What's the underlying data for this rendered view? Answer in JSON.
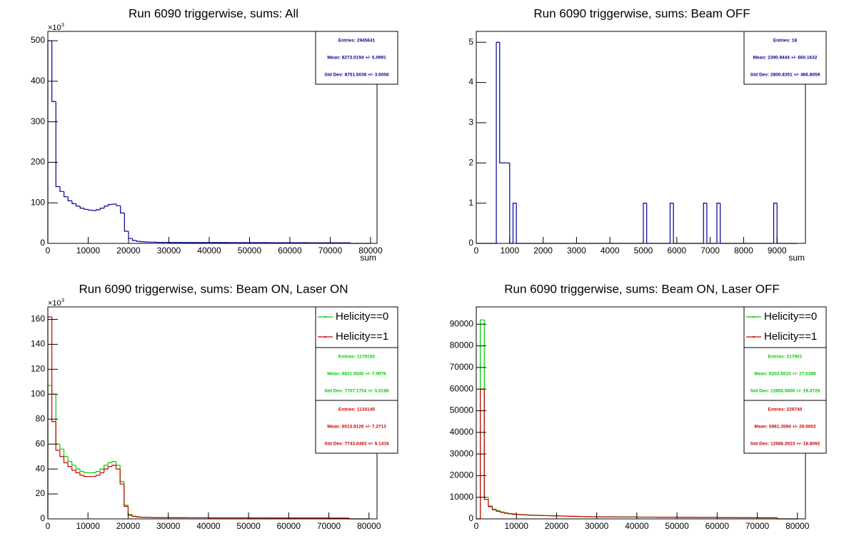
{
  "chart_data": [
    {
      "type": "histogram",
      "title": "Run 6090 triggerwise, sums: All",
      "xlabel": "sum",
      "y_multiplier": "×10",
      "y_multiplier_power": "3",
      "bins": [
        0,
        1000,
        2000,
        3000,
        4000,
        5000,
        6000,
        7000,
        8000,
        9000,
        10000,
        11000,
        12000,
        13000,
        14000,
        15000,
        16000,
        17000,
        18000,
        19000,
        20000,
        21000,
        22000,
        23000,
        24000,
        25000,
        26000,
        27000,
        28000,
        29000,
        30000,
        35000,
        40000,
        45000,
        50000,
        55000,
        60000,
        65000,
        70000,
        75000,
        80000
      ],
      "values": [
        500,
        350,
        140,
        128,
        115,
        105,
        98,
        92,
        87,
        84,
        82,
        81,
        83,
        87,
        92,
        96,
        97,
        93,
        75,
        30,
        12,
        7,
        5,
        4,
        3.5,
        3,
        3,
        2.5,
        2.5,
        2.5,
        2.2,
        2,
        2,
        1.8,
        1.7,
        1.6,
        1.5,
        1.4,
        1.3,
        0
      ],
      "color": "#000099",
      "stats": [
        "Entries: 2945641",
        "Mean: 8273.0194 +/- 5.0991",
        "Std Dev: 8751.5036 +/- 3.6056"
      ],
      "xlim": [
        0,
        81600
      ],
      "xticks": [
        0,
        10000,
        20000,
        30000,
        40000,
        50000,
        60000,
        70000,
        80000
      ],
      "ylim": [
        0,
        523
      ],
      "yticks": [
        0,
        100,
        200,
        300,
        400,
        500
      ]
    },
    {
      "type": "histogram",
      "title": "Run 6090 triggerwise, sums: Beam OFF",
      "xlabel": "sum",
      "bins": [
        0,
        600,
        700,
        800,
        900,
        1000,
        1100,
        1200,
        5000,
        5100,
        5800,
        5900,
        6800,
        6900,
        7200,
        7300,
        8900,
        9000,
        9600
      ],
      "values": [
        0,
        5,
        2,
        2,
        2,
        0,
        1,
        0,
        1,
        0,
        1,
        0,
        1,
        0,
        1,
        0,
        1,
        0
      ],
      "color": "#000099",
      "stats": [
        "Entries: 18",
        "Mean: 2390.9444 +/- 660.1632",
        "Std Dev: 2800.8351 +/- 466.8059"
      ],
      "xlim": [
        0,
        9850
      ],
      "xticks": [
        0,
        1000,
        2000,
        3000,
        4000,
        5000,
        6000,
        7000,
        8000,
        9000
      ],
      "ylim": [
        0,
        5.27
      ],
      "yticks": [
        0,
        1,
        2,
        3,
        4,
        5
      ]
    },
    {
      "type": "histogram",
      "title": "Run 6090 triggerwise, sums: Beam ON, Laser ON",
      "y_multiplier": "×10",
      "y_multiplier_power": "3",
      "bins": [
        0,
        1000,
        2000,
        3000,
        4000,
        5000,
        6000,
        7000,
        8000,
        9000,
        10000,
        11000,
        12000,
        13000,
        14000,
        15000,
        16000,
        17000,
        18000,
        19000,
        20000,
        21000,
        22000,
        23000,
        24000,
        25000,
        26000,
        27000,
        28000,
        29000,
        30000,
        35000,
        40000,
        45000,
        50000,
        55000,
        60000,
        65000,
        70000,
        75000,
        80000
      ],
      "series": [
        {
          "name": "Helicity==0",
          "color": "#00cc00",
          "stats": [
            "Entries: 1179150",
            "Mean: 6831.5540 +/- 7.0976",
            "Std Dev: 7707.1754 +/- 5.0188"
          ],
          "values": [
            107,
            100,
            60,
            56,
            50,
            46,
            43,
            40,
            38,
            37,
            37,
            37,
            38,
            40,
            43,
            45,
            46,
            43,
            30,
            11,
            3.5,
            2.2,
            1.7,
            1.4,
            1.3,
            1.2,
            1.1,
            1.1,
            1,
            1,
            1,
            0.9,
            0.9,
            0.9,
            0.8,
            0.8,
            0.7,
            0.7,
            0.7,
            0
          ]
        },
        {
          "name": "Helicity==1",
          "color": "#cc0000",
          "stats": [
            "Entries: 1134145",
            "Mean: 6513.8126 +/- 7.2713",
            "Std Dev: 7743.6483 +/- 5.1416"
          ],
          "values": [
            162,
            78,
            55,
            50,
            45,
            42,
            39,
            37,
            35,
            34,
            34,
            34,
            35,
            37,
            40,
            42,
            43,
            40,
            28,
            10,
            3,
            2,
            1.5,
            1.3,
            1.2,
            1.1,
            1,
            1,
            1,
            1,
            0.9,
            0.9,
            0.8,
            0.8,
            0.8,
            0.7,
            0.7,
            0.7,
            0.6,
            0
          ]
        }
      ],
      "xlim": [
        0,
        82000
      ],
      "xticks": [
        0,
        10000,
        20000,
        30000,
        40000,
        50000,
        60000,
        70000,
        80000
      ],
      "ylim": [
        0,
        170
      ],
      "yticks": [
        0,
        20,
        40,
        60,
        80,
        100,
        120,
        140,
        160
      ]
    },
    {
      "type": "histogram",
      "title": "Run 6090 triggerwise, sums: Beam ON, Laser OFF",
      "bins": [
        0,
        1000,
        2000,
        3000,
        4000,
        5000,
        6000,
        7000,
        8000,
        9000,
        10000,
        11000,
        12000,
        13000,
        14000,
        15000,
        16000,
        17000,
        18000,
        19000,
        20000,
        21000,
        22000,
        23000,
        24000,
        25000,
        26000,
        27000,
        28000,
        29000,
        30000,
        35000,
        40000,
        45000,
        50000,
        55000,
        60000,
        65000,
        70000,
        75000,
        80000
      ],
      "series": [
        {
          "name": "Helicity==0",
          "color": "#00cc00",
          "stats": [
            "Entries: 217901",
            "Mean: 6202.6515 +/- 27.5388",
            "Std Dev: 12855.0606 +/- 19.4728"
          ],
          "values": [
            0,
            92000,
            10000,
            6000,
            4500,
            3800,
            3200,
            2800,
            2500,
            2300,
            2100,
            2000,
            1900,
            1800,
            1700,
            1650,
            1600,
            1550,
            1500,
            1450,
            1400,
            1350,
            1300,
            1250,
            1200,
            1150,
            1100,
            1050,
            1000,
            1000,
            950,
            900,
            850,
            800,
            750,
            700,
            650,
            600,
            550,
            0
          ]
        },
        {
          "name": "Helicity==1",
          "color": "#cc0000",
          "stats": [
            "Entries: 226740",
            "Mean: 5961.3594 +/- 26.6002",
            "Std Dev: 12666.2623 +/- 18.8092"
          ],
          "values": [
            0,
            60000,
            9000,
            5600,
            4200,
            3500,
            3000,
            2600,
            2300,
            2100,
            2000,
            1900,
            1800,
            1700,
            1650,
            1600,
            1550,
            1500,
            1450,
            1400,
            1350,
            1300,
            1250,
            1200,
            1150,
            1100,
            1050,
            1000,
            1000,
            950,
            900,
            850,
            800,
            750,
            700,
            650,
            600,
            550,
            500,
            0
          ]
        }
      ],
      "xlim": [
        0,
        82000
      ],
      "xticks": [
        0,
        10000,
        20000,
        30000,
        40000,
        50000,
        60000,
        70000,
        80000
      ],
      "ylim": [
        0,
        98000
      ],
      "yticks": [
        0,
        10000,
        20000,
        30000,
        40000,
        50000,
        60000,
        70000,
        80000,
        90000
      ]
    }
  ]
}
